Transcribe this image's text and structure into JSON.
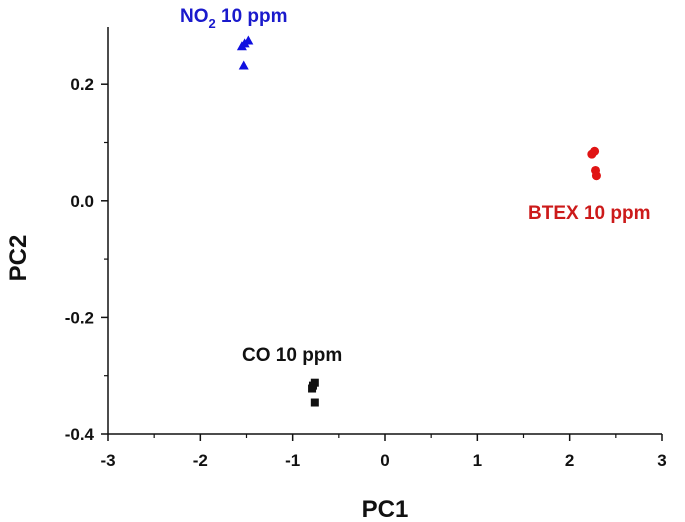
{
  "chart_data": {
    "type": "scatter",
    "title": "",
    "xlabel": "PC1",
    "ylabel": "PC2",
    "xlim": [
      -3,
      3
    ],
    "ylim": [
      -0.4,
      0.3
    ],
    "xticks": [
      -3,
      -2,
      -1,
      0,
      1,
      2,
      3
    ],
    "yticks": [
      -0.4,
      -0.2,
      0.0,
      0.2
    ],
    "xtick_labels": [
      "-3",
      "-2",
      "-1",
      "0",
      "1",
      "2",
      "3"
    ],
    "ytick_labels": [
      "-0.4",
      "-0.2",
      "0.0",
      "0.2"
    ],
    "grid": false,
    "series": [
      {
        "marker": "triangle",
        "color": "#1010e0",
        "points": [
          [
            -1.48,
            0.275
          ],
          [
            -1.52,
            0.27
          ],
          [
            -1.55,
            0.265
          ],
          [
            -1.53,
            0.232
          ]
        ]
      },
      {
        "marker": "circle",
        "color": "#e01414",
        "points": [
          [
            2.27,
            0.085
          ],
          [
            2.24,
            0.08
          ],
          [
            2.28,
            0.052
          ],
          [
            2.29,
            0.043
          ]
        ]
      },
      {
        "marker": "square",
        "color": "#111111",
        "points": [
          [
            -0.76,
            -0.312
          ],
          [
            -0.78,
            -0.317
          ],
          [
            -0.79,
            -0.322
          ],
          [
            -0.76,
            -0.346
          ]
        ]
      }
    ],
    "annotations": [
      {
        "main": "NO",
        "sub": "2",
        "rest": " 10 ppm",
        "color": "#1a1acc"
      },
      {
        "main": "BTEX 10 ppm",
        "color": "#cc1a1a"
      },
      {
        "main": "CO 10 ppm",
        "color": "#111111"
      }
    ]
  }
}
